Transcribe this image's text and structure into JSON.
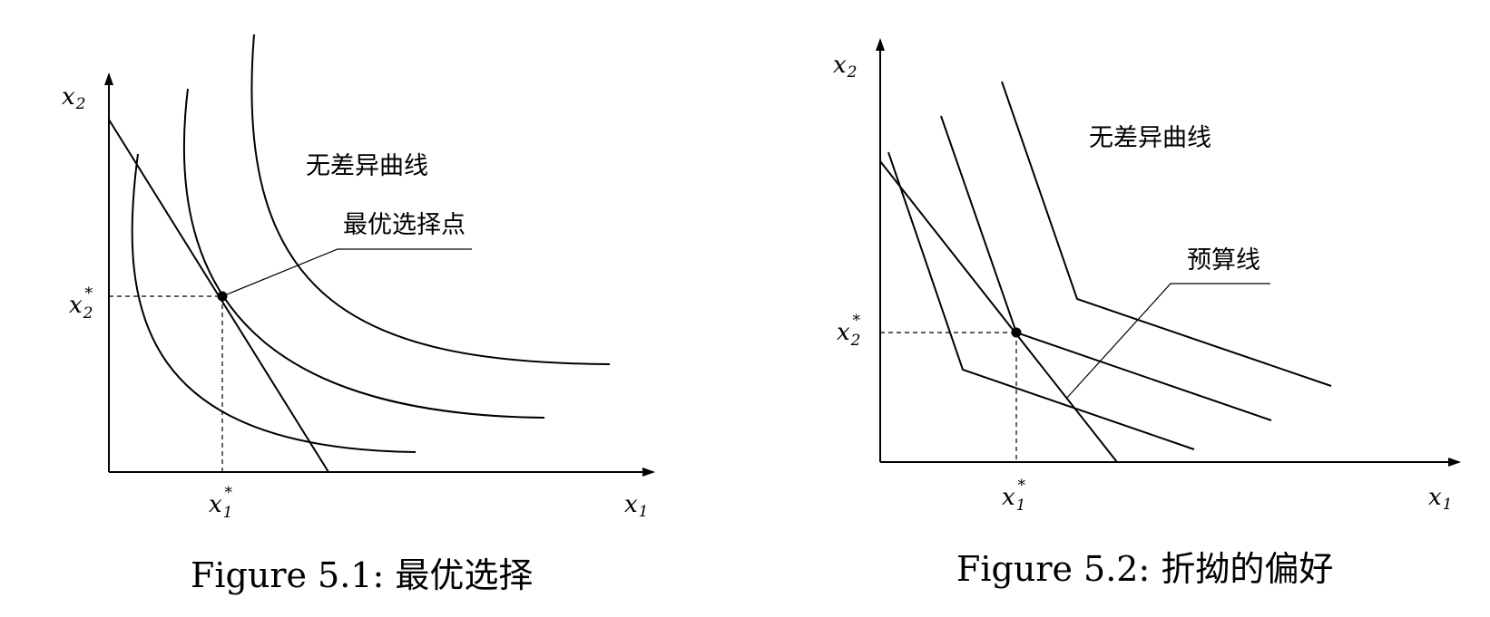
{
  "figure1": {
    "caption": "Figure 5.1: 最优选择",
    "y_axis_label": "x",
    "y_axis_sub": "2",
    "x_axis_label": "x",
    "x_axis_sub": "1",
    "x_star_label": "x",
    "x_star_sub": "1",
    "x_star_sup": "*",
    "y_star_label": "x",
    "y_star_sub": "2",
    "y_star_sup": "*",
    "indifference_label": "无差异曲线",
    "optimal_label": "最优选择点"
  },
  "figure2": {
    "caption": "Figure 5.2: 折拗的偏好",
    "y_axis_label": "x",
    "y_axis_sub": "2",
    "x_axis_label": "x",
    "x_axis_sub": "1",
    "x_star_label": "x",
    "x_star_sub": "1",
    "x_star_sup": "*",
    "y_star_label": "x",
    "y_star_sub": "2",
    "y_star_sup": "*",
    "indifference_label": "无差异曲线",
    "budget_label": "预算线"
  }
}
